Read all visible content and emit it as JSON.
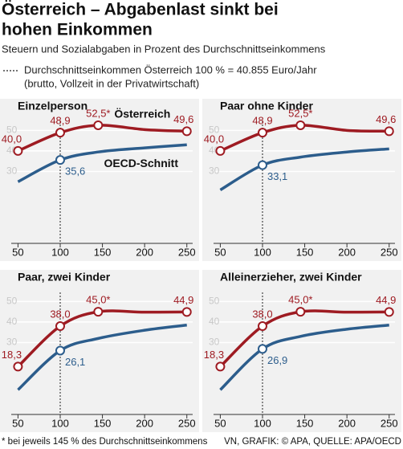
{
  "title": "Österreich – Abgabenlast sinkt bei hohen Einkommen",
  "subtitle": "Steuern und Sozialabgaben in Prozent des Durchschnittseinkommens",
  "note_lines": [
    "Durchschnittseinkommen Österreich 100 % = 40.855 Euro/Jahr",
    "(brutto, Vollzeit in der Privatwirtschaft)"
  ],
  "footnote": "* bei jeweils 145 % des Durchschnittseinkommens",
  "source": "VN, GRAFIK: © APA, QUELLE: APA/OECD",
  "chart_data": [
    {
      "type": "line",
      "title": "Einzelperson",
      "x": [
        50,
        100,
        145,
        200,
        250
      ],
      "xlim": [
        42,
        255
      ],
      "xticks": [
        50,
        100,
        150,
        200,
        250
      ],
      "ylim": [
        -5,
        56
      ],
      "yticks": [
        30,
        40,
        50
      ],
      "grid": true,
      "series": [
        {
          "name": "Österreich",
          "color": "#9e1b22",
          "values": [
            40.0,
            48.9,
            52.5,
            50.4,
            49.6
          ],
          "value_labels": [
            "40,0",
            "48,9",
            "52,5*",
            null,
            "49,6"
          ]
        },
        {
          "name": "OECD-Schnitt",
          "color": "#2c5d8c",
          "values": [
            25,
            35.6,
            39.5,
            41.5,
            43
          ],
          "value_labels": [
            null,
            "35,6",
            null,
            null,
            null
          ]
        }
      ]
    },
    {
      "type": "line",
      "title": "Paar ohne Kinder",
      "x": [
        50,
        100,
        145,
        200,
        250
      ],
      "xlim": [
        42,
        255
      ],
      "xticks": [
        50,
        100,
        150,
        200,
        250
      ],
      "ylim": [
        -5,
        56
      ],
      "yticks": [
        30,
        40,
        50
      ],
      "grid": true,
      "series": [
        {
          "color": "#9e1b22",
          "values": [
            40.0,
            48.9,
            52.5,
            50.0,
            49.6
          ],
          "value_labels": [
            "40,0",
            "48,9",
            "52,5*",
            null,
            "49,6"
          ]
        },
        {
          "color": "#2c5d8c",
          "values": [
            21,
            33.1,
            37,
            39.5,
            41
          ],
          "value_labels": [
            null,
            "33,1",
            null,
            null,
            null
          ]
        }
      ]
    },
    {
      "type": "line",
      "title": "Paar, zwei Kinder",
      "x": [
        50,
        100,
        145,
        200,
        250
      ],
      "xlim": [
        42,
        255
      ],
      "xticks": [
        50,
        100,
        150,
        200,
        250
      ],
      "ylim": [
        -5,
        56
      ],
      "yticks": [
        30,
        40,
        50
      ],
      "grid": true,
      "series": [
        {
          "color": "#9e1b22",
          "values": [
            18.3,
            38.0,
            45.0,
            44.8,
            44.9
          ],
          "value_labels": [
            "18,3",
            "38,0",
            "45,0*",
            null,
            "44,9"
          ]
        },
        {
          "color": "#2c5d8c",
          "values": [
            7,
            26.1,
            32,
            36,
            38.5
          ],
          "value_labels": [
            null,
            "26,1",
            null,
            null,
            null
          ]
        }
      ]
    },
    {
      "type": "line",
      "title": "Alleinerzieher, zwei Kinder",
      "x": [
        50,
        100,
        145,
        200,
        250
      ],
      "xlim": [
        42,
        255
      ],
      "xticks": [
        50,
        100,
        150,
        200,
        250
      ],
      "ylim": [
        -5,
        56
      ],
      "yticks": [
        30,
        40,
        50
      ],
      "grid": true,
      "series": [
        {
          "color": "#9e1b22",
          "values": [
            18.3,
            38.0,
            45.0,
            44.8,
            44.9
          ],
          "value_labels": [
            "18,3",
            "38,0",
            "45,0*",
            null,
            "44,9"
          ]
        },
        {
          "color": "#2c5d8c",
          "values": [
            7,
            26.9,
            33,
            36.5,
            38.5
          ],
          "value_labels": [
            null,
            "26,9",
            null,
            null,
            null
          ]
        }
      ]
    }
  ]
}
